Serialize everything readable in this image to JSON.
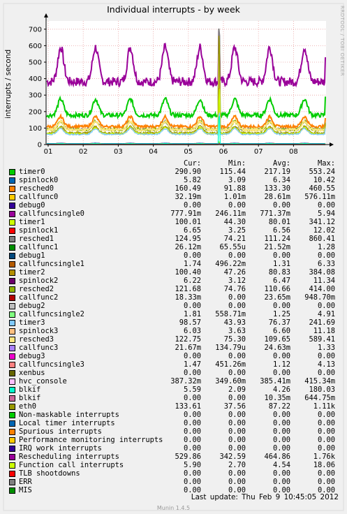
{
  "chart_data": {
    "type": "line",
    "title": "Individual interrupts - by week",
    "ylabel": "interrupts / second",
    "xlabel": "",
    "x_ticks": [
      "01",
      "02",
      "03",
      "04",
      "05",
      "06",
      "07",
      "08"
    ],
    "y_ticks": [
      "0",
      "100",
      "200",
      "300",
      "400",
      "500",
      "600",
      "700"
    ],
    "ylim": [
      0,
      750
    ],
    "grid": true,
    "series": [
      {
        "name": "timer0",
        "color": "#00cc00",
        "key": 290,
        "cur": "290.90",
        "min": "115.44",
        "avg": "217.19",
        "max": "553.24"
      },
      {
        "name": "spinlock0",
        "color": "#0066b3",
        "key": 6,
        "cur": "5.82",
        "min": "3.09",
        "avg": "6.34",
        "max": "10.42"
      },
      {
        "name": "resched0",
        "color": "#ff8000",
        "key": 160,
        "cur": "160.49",
        "min": "91.88",
        "avg": "133.30",
        "max": "460.55"
      },
      {
        "name": "callfunc0",
        "color": "#ffcc00",
        "key": 0.03,
        "cur": "32.19m",
        "min": "1.01m",
        "avg": "28.61m",
        "max": "576.11m"
      },
      {
        "name": "debug0",
        "color": "#330099",
        "key": 0,
        "cur": "0.00",
        "min": "0.00",
        "avg": "0.00",
        "max": "0.00"
      },
      {
        "name": "callfuncsingle0",
        "color": "#990099",
        "key": 0.78,
        "cur": "777.91m",
        "min": "246.11m",
        "avg": "771.37m",
        "max": "5.94"
      },
      {
        "name": "timer1",
        "color": "#ccff00",
        "key": 100,
        "cur": "100.01",
        "min": "44.30",
        "avg": "80.01",
        "max": "341.12"
      },
      {
        "name": "spinlock1",
        "color": "#ff0000",
        "key": 6.6,
        "cur": "6.65",
        "min": "3.25",
        "avg": "6.56",
        "max": "12.02"
      },
      {
        "name": "resched1",
        "color": "#808080",
        "key": 125,
        "cur": "124.95",
        "min": "74.21",
        "avg": "111.24",
        "max": "860.41"
      },
      {
        "name": "callfunc1",
        "color": "#008f00",
        "key": 0.03,
        "cur": "26.12m",
        "min": "65.55u",
        "avg": "21.52m",
        "max": "1.28"
      },
      {
        "name": "debug1",
        "color": "#00487d",
        "key": 0,
        "cur": "0.00",
        "min": "0.00",
        "avg": "0.00",
        "max": "0.00"
      },
      {
        "name": "callfuncsingle1",
        "color": "#b35a00",
        "key": 1.7,
        "cur": "1.74",
        "min": "496.22m",
        "avg": "1.31",
        "max": "6.33"
      },
      {
        "name": "timer2",
        "color": "#b38f00",
        "key": 100,
        "cur": "100.40",
        "min": "47.26",
        "avg": "80.83",
        "max": "384.08"
      },
      {
        "name": "spinlock2",
        "color": "#6b006b",
        "key": 6.2,
        "cur": "6.22",
        "min": "3.12",
        "avg": "6.47",
        "max": "11.34"
      },
      {
        "name": "resched2",
        "color": "#8fb300",
        "key": 122,
        "cur": "121.68",
        "min": "74.76",
        "avg": "110.66",
        "max": "414.00"
      },
      {
        "name": "callfunc2",
        "color": "#b30000",
        "key": 0.02,
        "cur": "18.33m",
        "min": "0.00",
        "avg": "23.65m",
        "max": "948.70m"
      },
      {
        "name": "debug2",
        "color": "#bebebe",
        "key": 0,
        "cur": "0.00",
        "min": "0.00",
        "avg": "0.00",
        "max": "0.00"
      },
      {
        "name": "callfuncsingle2",
        "color": "#80ff80",
        "key": 1.8,
        "cur": "1.81",
        "min": "558.71m",
        "avg": "1.25",
        "max": "4.91"
      },
      {
        "name": "timer3",
        "color": "#80c9ff",
        "key": 98,
        "cur": "98.57",
        "min": "43.93",
        "avg": "76.37",
        "max": "241.69"
      },
      {
        "name": "spinlock3",
        "color": "#ffc080",
        "key": 6,
        "cur": "6.03",
        "min": "3.63",
        "avg": "6.60",
        "max": "11.18"
      },
      {
        "name": "resched3",
        "color": "#ffe680",
        "key": 122,
        "cur": "122.75",
        "min": "75.30",
        "avg": "109.65",
        "max": "589.41"
      },
      {
        "name": "callfunc3",
        "color": "#aa80ff",
        "key": 0.02,
        "cur": "21.67m",
        "min": "134.79u",
        "avg": "24.63m",
        "max": "1.33"
      },
      {
        "name": "debug3",
        "color": "#ee00cc",
        "key": 0,
        "cur": "0.00",
        "min": "0.00",
        "avg": "0.00",
        "max": "0.00"
      },
      {
        "name": "callfuncsingle3",
        "color": "#ff8080",
        "key": 1.5,
        "cur": "1.47",
        "min": "451.26m",
        "avg": "1.12",
        "max": "4.13"
      },
      {
        "name": "xenbus",
        "color": "#666600",
        "key": 0,
        "cur": "0.00",
        "min": "0.00",
        "avg": "0.00",
        "max": "0.00"
      },
      {
        "name": "hvc_console",
        "color": "#ffbfff",
        "key": 0.39,
        "cur": "387.32m",
        "min": "349.60m",
        "avg": "385.41m",
        "max": "415.34m"
      },
      {
        "name": "blkif",
        "color": "#00ffcc",
        "key": 5.6,
        "cur": "5.59",
        "min": "2.09",
        "avg": "4.26",
        "max": "180.03"
      },
      {
        "name": "blkif",
        "color": "#cc6699",
        "key": 0,
        "cur": "0.00",
        "min": "0.00",
        "avg": "10.35m",
        "max": "644.75m"
      },
      {
        "name": "eth0",
        "color": "#999900",
        "key": 134,
        "cur": "133.61",
        "min": "37.56",
        "avg": "87.22",
        "max": "1.11k"
      },
      {
        "name": "Non-maskable interrupts",
        "color": "#00cc00",
        "key": 0,
        "cur": "0.00",
        "min": "0.00",
        "avg": "0.00",
        "max": "0.00"
      },
      {
        "name": "Local timer interrupts",
        "color": "#0066b3",
        "key": 0,
        "cur": "0.00",
        "min": "0.00",
        "avg": "0.00",
        "max": "0.00"
      },
      {
        "name": "Spurious interrupts",
        "color": "#ff8000",
        "key": 0,
        "cur": "0.00",
        "min": "0.00",
        "avg": "0.00",
        "max": "0.00"
      },
      {
        "name": "Performance monitoring interrupts",
        "color": "#ffcc00",
        "key": 0,
        "cur": "0.00",
        "min": "0.00",
        "avg": "0.00",
        "max": "0.00"
      },
      {
        "name": "IRQ work interrupts",
        "color": "#330099",
        "key": 0,
        "cur": "0.00",
        "min": "0.00",
        "avg": "0.00",
        "max": "0.00"
      },
      {
        "name": "Rescheduling interrupts",
        "color": "#990099",
        "key": 530,
        "cur": "529.86",
        "min": "342.59",
        "avg": "464.86",
        "max": "1.76k"
      },
      {
        "name": "Function call interrupts",
        "color": "#ccff00",
        "key": 5.9,
        "cur": "5.90",
        "min": "2.70",
        "avg": "4.54",
        "max": "18.06"
      },
      {
        "name": "TLB shootdowns",
        "color": "#ff0000",
        "key": 0,
        "cur": "0.00",
        "min": "0.00",
        "avg": "0.00",
        "max": "0.00"
      },
      {
        "name": "ERR",
        "color": "#808080",
        "key": 0,
        "cur": "0.00",
        "min": "0.00",
        "avg": "0.00",
        "max": "0.00"
      },
      {
        "name": "MIS",
        "color": "#008f00",
        "key": 0,
        "cur": "0.00",
        "min": "0.00",
        "avg": "0.00",
        "max": "0.00"
      }
    ]
  },
  "legend_header": {
    "cur": "Cur:",
    "min": "Min:",
    "avg": "Avg:",
    "max": "Max:"
  },
  "footer": {
    "last_update": "Last update:  Thu Feb  9 10:45:05 2012",
    "generator": "Munin 1.4.5",
    "watermark": "RRDTOOL / TOBI OETIKER"
  }
}
